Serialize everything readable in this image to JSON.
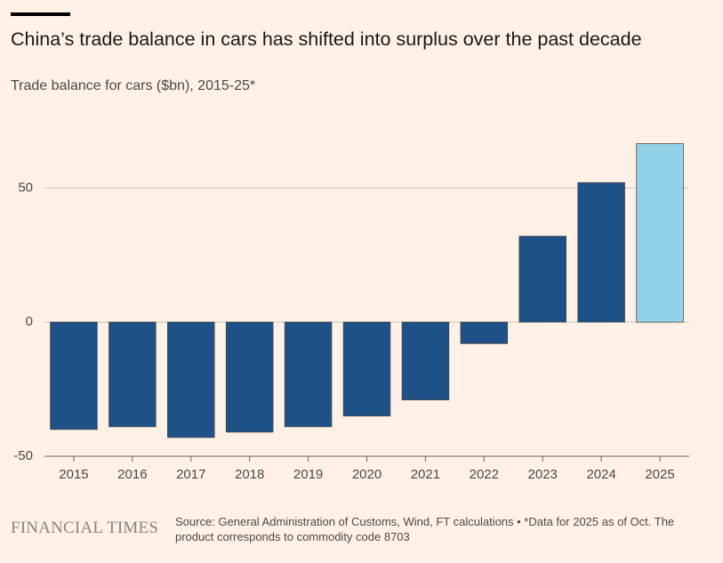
{
  "chart_data": {
    "type": "bar",
    "title": "China’s trade balance in cars has shifted into surplus over the past decade",
    "subtitle": "Trade balance for cars ($bn), 2015-25*",
    "categories": [
      "2015",
      "2016",
      "2017",
      "2018",
      "2019",
      "2020",
      "2021",
      "2022",
      "2023",
      "2024",
      "2025"
    ],
    "values": [
      -40,
      -39,
      -43,
      -41,
      -39,
      -35,
      -29,
      -8,
      32,
      52,
      66.5
    ],
    "colors": [
      "#1f5189",
      "#1f5189",
      "#1f5189",
      "#1f5189",
      "#1f5189",
      "#1f5189",
      "#1f5189",
      "#1f5189",
      "#1f5189",
      "#1f5189",
      "#92d2e8"
    ],
    "ylim": [
      -50,
      70
    ],
    "yticks": [
      -50,
      0,
      50
    ],
    "grid": true,
    "source": "Source: General Administration of Customs, Wind, FT calculations • *Data for 2025 as of Oct. The product corresponds to commodity code 8703",
    "brand": "FINANCIAL TIMES"
  }
}
